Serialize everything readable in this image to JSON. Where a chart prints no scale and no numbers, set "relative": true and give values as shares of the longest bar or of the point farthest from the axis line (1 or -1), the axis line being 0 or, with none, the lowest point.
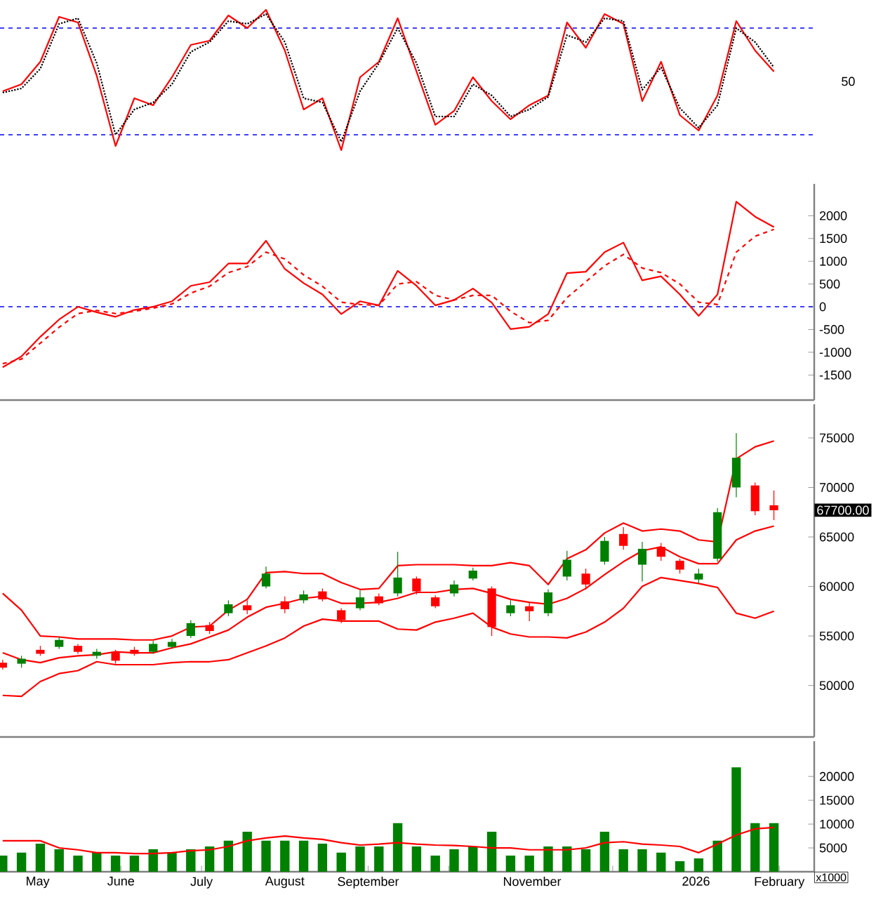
{
  "chart_data": [
    {
      "type": "line",
      "xlim": [
        "2025-04-17",
        "2026-02-14"
      ],
      "relative": true,
      "tick_labels": "y",
      "annotations": [
        "50"
      ],
      "x": [
        "2025-04-18",
        "2025-04-25",
        "2025-05-02",
        "2025-05-09",
        "2025-05-16",
        "2025-05-23",
        "2025-05-30",
        "2025-06-06",
        "2025-06-13",
        "2025-06-20",
        "2025-06-27",
        "2025-07-04",
        "2025-07-11",
        "2025-07-18",
        "2025-07-25",
        "2025-08-01",
        "2025-08-08",
        "2025-08-15",
        "2025-08-22",
        "2025-08-29",
        "2025-09-05",
        "2025-09-12",
        "2025-09-19",
        "2025-09-26",
        "2025-10-03",
        "2025-10-10",
        "2025-10-17",
        "2025-10-24",
        "2025-10-31",
        "2025-11-07",
        "2025-11-14",
        "2025-11-21",
        "2025-11-28",
        "2025-12-05",
        "2025-12-12",
        "2025-12-19",
        "2025-12-26",
        "2026-01-02",
        "2026-01-09",
        "2026-01-16",
        "2026-01-23",
        "2026-01-30"
      ],
      "ref_lines": [
        {
          "axis": "y",
          "value": 0.87,
          "color": "#0000ff",
          "line_style": "dashed"
        },
        {
          "axis": "y",
          "value": 0.11,
          "color": "#0000ff",
          "line_style": "dashed"
        }
      ],
      "series": [
        {
          "color": "#ff0000",
          "line_style": "solid",
          "values": [
            0.42,
            0.47,
            0.63,
            0.95,
            0.91,
            0.53,
            0.03,
            0.37,
            0.32,
            0.52,
            0.75,
            0.78,
            0.96,
            0.87,
            1,
            0.71,
            0.29,
            0.37,
            0,
            0.52,
            0.63,
            0.94,
            0.56,
            0.18,
            0.28,
            0.52,
            0.35,
            0.22,
            0.32,
            0.39,
            0.91,
            0.73,
            0.97,
            0.9,
            0.35,
            0.63,
            0.25,
            0.14,
            0.39,
            0.92,
            0.71,
            0.56
          ]
        },
        {
          "color": "#000000",
          "line_style": "dotted",
          "values": [
            0.41,
            0.44,
            0.58,
            0.9,
            0.94,
            0.62,
            0.11,
            0.29,
            0.34,
            0.47,
            0.7,
            0.77,
            0.92,
            0.9,
            0.97,
            0.77,
            0.37,
            0.34,
            0.06,
            0.42,
            0.62,
            0.87,
            0.62,
            0.24,
            0.24,
            0.47,
            0.39,
            0.24,
            0.29,
            0.38,
            0.82,
            0.77,
            0.94,
            0.92,
            0.43,
            0.59,
            0.3,
            0.16,
            0.32,
            0.87,
            0.77,
            0.59
          ]
        }
      ]
    },
    {
      "type": "line",
      "xlim": [
        "2025-04-17",
        "2026-02-14"
      ],
      "ylim": [
        -2050,
        2700
      ],
      "yticks": [
        -1500,
        -1000,
        -500,
        0,
        500,
        1000,
        1500,
        2000
      ],
      "tick_labels": "y",
      "x": [
        "2025-04-18",
        "2025-04-25",
        "2025-05-02",
        "2025-05-09",
        "2025-05-16",
        "2025-05-23",
        "2025-05-30",
        "2025-06-06",
        "2025-06-13",
        "2025-06-20",
        "2025-06-27",
        "2025-07-04",
        "2025-07-11",
        "2025-07-18",
        "2025-07-25",
        "2025-08-01",
        "2025-08-08",
        "2025-08-15",
        "2025-08-22",
        "2025-08-29",
        "2025-09-05",
        "2025-09-12",
        "2025-09-19",
        "2025-09-26",
        "2025-10-03",
        "2025-10-10",
        "2025-10-17",
        "2025-10-24",
        "2025-10-31",
        "2025-11-07",
        "2025-11-14",
        "2025-11-21",
        "2025-11-28",
        "2025-12-05",
        "2025-12-12",
        "2025-12-19",
        "2025-12-26",
        "2026-01-02",
        "2026-01-09",
        "2026-01-16",
        "2026-01-23",
        "2026-01-30"
      ],
      "ref_lines": [
        {
          "axis": "y",
          "value": 0,
          "color": "#0000ff",
          "line_style": "dashed"
        }
      ],
      "series": [
        {
          "color": "#ff0000",
          "line_style": "solid",
          "values": [
            -1330,
            -1090,
            -660,
            -280,
            0,
            -120,
            -220,
            -70,
            0,
            120,
            460,
            540,
            950,
            950,
            1450,
            830,
            520,
            270,
            -160,
            120,
            30,
            790,
            460,
            30,
            150,
            400,
            90,
            -490,
            -440,
            -160,
            740,
            770,
            1200,
            1410,
            580,
            670,
            270,
            -200,
            270,
            2310,
            1980,
            1750
          ]
        },
        {
          "color": "#ff0000",
          "line_style": "dashed",
          "values": [
            -1250,
            -1150,
            -800,
            -450,
            -150,
            -80,
            -150,
            -100,
            -30,
            60,
            300,
            450,
            750,
            880,
            1200,
            1050,
            700,
            450,
            100,
            50,
            30,
            500,
            550,
            250,
            150,
            250,
            250,
            -100,
            -350,
            -300,
            200,
            550,
            900,
            1150,
            850,
            750,
            500,
            100,
            50,
            1200,
            1550,
            1700
          ]
        }
      ]
    },
    {
      "type": "candlestick",
      "xlim": [
        "2025-04-17",
        "2026-02-14"
      ],
      "ylim": [
        44800,
        78400
      ],
      "yticks": [
        50000,
        55000,
        60000,
        65000,
        70000,
        75000
      ],
      "tick_labels": "y",
      "x": [
        "2025-04-18",
        "2025-04-25",
        "2025-05-02",
        "2025-05-09",
        "2025-05-16",
        "2025-05-23",
        "2025-05-30",
        "2025-06-06",
        "2025-06-13",
        "2025-06-20",
        "2025-06-27",
        "2025-07-04",
        "2025-07-11",
        "2025-07-18",
        "2025-07-25",
        "2025-08-01",
        "2025-08-08",
        "2025-08-15",
        "2025-08-22",
        "2025-08-29",
        "2025-09-05",
        "2025-09-12",
        "2025-09-19",
        "2025-09-26",
        "2025-10-03",
        "2025-10-10",
        "2025-10-17",
        "2025-10-24",
        "2025-10-31",
        "2025-11-07",
        "2025-11-14",
        "2025-11-21",
        "2025-11-28",
        "2025-12-05",
        "2025-12-12",
        "2025-12-19",
        "2025-12-26",
        "2026-01-02",
        "2026-01-09",
        "2026-01-16",
        "2026-01-23",
        "2026-01-30"
      ],
      "annotations": [
        "67700.00"
      ],
      "series": [
        {
          "type": "line",
          "color": "#ff0000",
          "values": [
            59300,
            57600,
            55000,
            54900,
            54700,
            54700,
            54700,
            54600,
            54600,
            55000,
            55900,
            56000,
            57600,
            58700,
            61400,
            61500,
            61300,
            61300,
            60400,
            59700,
            59800,
            62100,
            62200,
            62200,
            62200,
            62100,
            62100,
            62400,
            62100,
            60200,
            62800,
            63700,
            65400,
            66400,
            65600,
            65800,
            65600,
            64700,
            64500,
            72900,
            74100,
            74700
          ]
        },
        {
          "type": "line",
          "color": "#ff0000",
          "values": [
            53300,
            52600,
            52300,
            52800,
            53000,
            53100,
            53400,
            53300,
            53300,
            53800,
            54200,
            54900,
            55600,
            56900,
            57900,
            58300,
            58800,
            59000,
            58300,
            58300,
            58400,
            58800,
            59400,
            59400,
            59700,
            59800,
            59300,
            58700,
            58400,
            58200,
            58800,
            59800,
            61200,
            62500,
            63600,
            64000,
            63000,
            62300,
            62300,
            64700,
            65600,
            66100
          ]
        },
        {
          "type": "line",
          "color": "#ff0000",
          "values": [
            49000,
            48900,
            50400,
            51200,
            51500,
            52400,
            52100,
            52100,
            52100,
            52300,
            52400,
            52400,
            52600,
            53300,
            54000,
            54800,
            56000,
            56700,
            56500,
            56500,
            56500,
            55700,
            55600,
            56400,
            56800,
            57300,
            55900,
            55200,
            54900,
            54900,
            54800,
            55400,
            56400,
            57800,
            60000,
            60900,
            60600,
            60300,
            59900,
            57300,
            56800,
            57500
          ]
        },
        {
          "type": "candlestick",
          "colors": [
            "#ff0000",
            "#008000",
            "#ff0000",
            "#008000",
            "#ff0000",
            "#008000",
            "#ff0000",
            "#ff0000",
            "#008000",
            "#008000",
            "#008000",
            "#ff0000",
            "#008000",
            "#ff0000",
            "#008000",
            "#ff0000",
            "#008000",
            "#ff0000",
            "#ff0000",
            "#008000",
            "#ff0000",
            "#008000",
            "#ff0000",
            "#ff0000",
            "#008000",
            "#008000",
            "#ff0000",
            "#008000",
            "#ff0000",
            "#008000",
            "#008000",
            "#ff0000",
            "#008000",
            "#ff0000",
            "#008000",
            "#ff0000",
            "#ff0000",
            "#008000",
            "#008000",
            "#008000",
            "#ff0000",
            "#ff0000"
          ],
          "ohlc": [
            [
              52300,
              52600,
              51600,
              51800
            ],
            [
              52200,
              53000,
              51800,
              52700
            ],
            [
              53600,
              54000,
              53000,
              53200
            ],
            [
              53900,
              54900,
              53700,
              54600
            ],
            [
              54000,
              54200,
              53200,
              53400
            ],
            [
              53000,
              53700,
              52700,
              53400
            ],
            [
              53300,
              53600,
              52200,
              52500
            ],
            [
              53600,
              53900,
              53000,
              53200
            ],
            [
              53400,
              54500,
              53200,
              54200
            ],
            [
              53900,
              54700,
              53700,
              54400
            ],
            [
              55000,
              56600,
              54800,
              56300
            ],
            [
              56100,
              56400,
              55200,
              55500
            ],
            [
              57300,
              58600,
              57000,
              58200
            ],
            [
              58100,
              58600,
              57200,
              57600
            ],
            [
              60000,
              62000,
              59800,
              61300
            ],
            [
              58500,
              59000,
              57300,
              57700
            ],
            [
              58600,
              59600,
              58300,
              59200
            ],
            [
              59500,
              59800,
              58500,
              58700
            ],
            [
              57600,
              57800,
              56300,
              56600
            ],
            [
              57800,
              59600,
              57600,
              58900
            ],
            [
              59000,
              59300,
              58100,
              58300
            ],
            [
              59300,
              63500,
              59000,
              60900
            ],
            [
              60800,
              61000,
              59200,
              59500
            ],
            [
              58900,
              59100,
              57800,
              58000
            ],
            [
              59300,
              60600,
              59000,
              60200
            ],
            [
              60800,
              61900,
              60600,
              61600
            ],
            [
              59800,
              60000,
              55000,
              55900
            ],
            [
              57300,
              58600,
              57000,
              58100
            ],
            [
              58000,
              58400,
              56500,
              57500
            ],
            [
              57300,
              59700,
              57000,
              59400
            ],
            [
              61000,
              63600,
              60600,
              62700
            ],
            [
              61300,
              61800,
              59700,
              60200
            ],
            [
              62500,
              65000,
              62200,
              64600
            ],
            [
              65300,
              66000,
              63700,
              64100
            ],
            [
              62200,
              64500,
              60500,
              63800
            ],
            [
              64000,
              64400,
              62600,
              63000
            ],
            [
              62600,
              62800,
              61300,
              61700
            ],
            [
              60700,
              61800,
              60300,
              61300
            ],
            [
              62800,
              67900,
              62500,
              67500
            ],
            [
              70000,
              75500,
              69000,
              73000
            ],
            [
              70200,
              70500,
              67200,
              67600
            ],
            [
              68200,
              69700,
              66700,
              67700
            ]
          ]
        }
      ]
    },
    {
      "type": "bar",
      "xlim": [
        "2025-04-17",
        "2026-02-14"
      ],
      "ylim": [
        0,
        27400
      ],
      "yticks": [
        5000,
        10000,
        15000,
        20000
      ],
      "xticks": [
        {
          "value": "2025-05-01",
          "label": "May"
        },
        {
          "value": "2025-06-01",
          "label": "June"
        },
        {
          "value": "2025-07-01",
          "label": "July"
        },
        {
          "value": "2025-08-01",
          "label": "August"
        },
        {
          "value": "2025-09-01",
          "label": "September"
        },
        {
          "value": "2025-10-01",
          "label": null
        },
        {
          "value": "2025-11-01",
          "label": "November"
        },
        {
          "value": "2025-12-01",
          "label": null
        },
        {
          "value": "2026-01-01",
          "label": "2026"
        },
        {
          "value": "2026-02-01",
          "label": "February"
        }
      ],
      "x": [
        "2025-04-18",
        "2025-04-25",
        "2025-05-02",
        "2025-05-09",
        "2025-05-16",
        "2025-05-23",
        "2025-05-30",
        "2025-06-06",
        "2025-06-13",
        "2025-06-20",
        "2025-06-27",
        "2025-07-04",
        "2025-07-11",
        "2025-07-18",
        "2025-07-25",
        "2025-08-01",
        "2025-08-08",
        "2025-08-15",
        "2025-08-22",
        "2025-08-29",
        "2025-09-05",
        "2025-09-12",
        "2025-09-19",
        "2025-09-26",
        "2025-10-03",
        "2025-10-10",
        "2025-10-17",
        "2025-10-24",
        "2025-10-31",
        "2025-11-07",
        "2025-11-14",
        "2025-11-21",
        "2025-11-28",
        "2025-12-05",
        "2025-12-12",
        "2025-12-19",
        "2025-12-26",
        "2026-01-02",
        "2026-01-09",
        "2026-01-16",
        "2026-01-23",
        "2026-01-30"
      ],
      "annotations": [
        "x1000"
      ],
      "series": [
        {
          "type": "bar",
          "color": "#008000",
          "values": [
            3400,
            4000,
            5900,
            4700,
            3400,
            4000,
            3400,
            3400,
            4700,
            4000,
            4700,
            5300,
            6500,
            8400,
            6500,
            6500,
            6500,
            5900,
            4000,
            5300,
            5300,
            10200,
            5300,
            3400,
            4700,
            5300,
            8400,
            3400,
            3400,
            5300,
            5300,
            4700,
            8400,
            4700,
            4700,
            4000,
            2200,
            2800,
            6500,
            21900,
            10200,
            10200
          ]
        },
        {
          "type": "line",
          "color": "#ff0000",
          "values": [
            6500,
            6500,
            6500,
            5000,
            4600,
            4000,
            4000,
            3800,
            3800,
            4000,
            4400,
            4600,
            5300,
            6500,
            7100,
            7500,
            7100,
            6800,
            6100,
            5600,
            5800,
            6100,
            5800,
            5600,
            5500,
            5300,
            5000,
            5000,
            4600,
            4600,
            4600,
            5000,
            6100,
            6300,
            5800,
            5600,
            5300,
            4000,
            5800,
            7700,
            9000,
            9300
          ]
        }
      ]
    }
  ]
}
